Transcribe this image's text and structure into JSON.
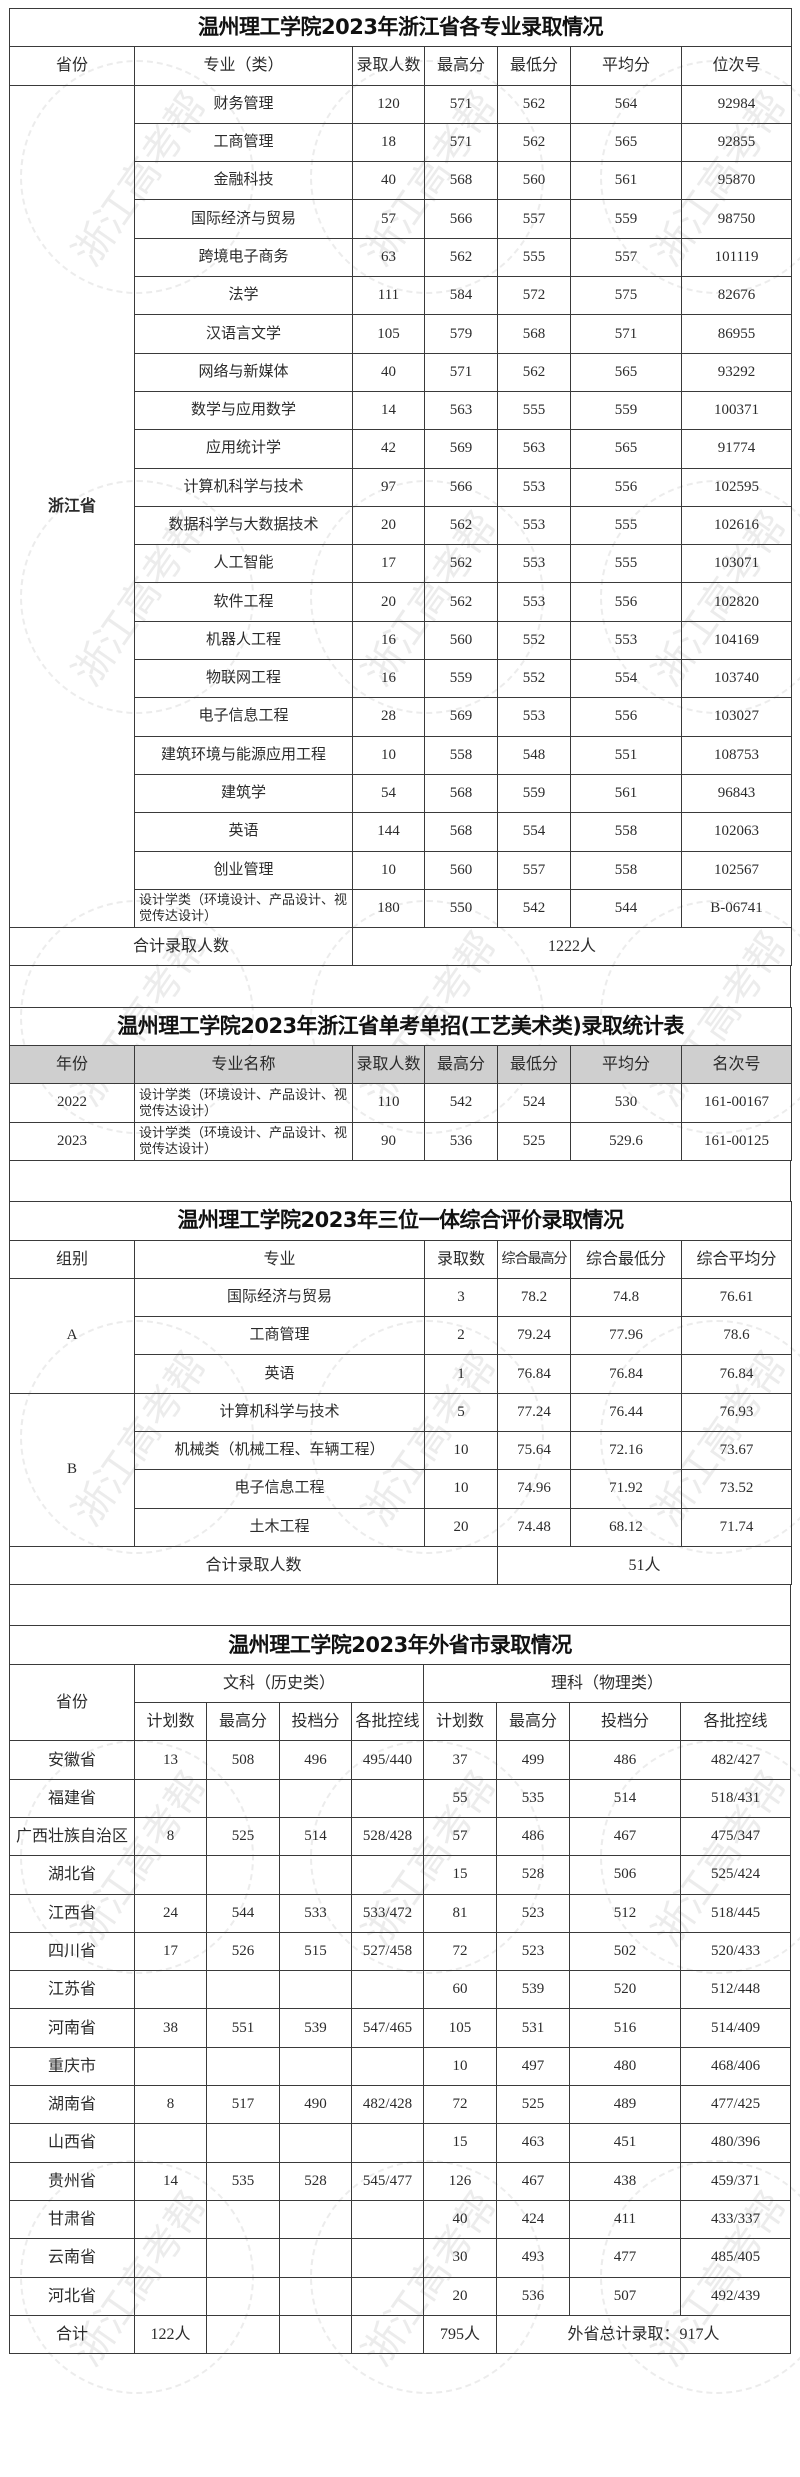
{
  "watermark": "浙江高考帮",
  "table1": {
    "title": "温州理工学院2023年浙江省各专业录取情况",
    "headers": [
      "省份",
      "专业（类）",
      "录取人数",
      "最高分",
      "最低分",
      "平均分",
      "位次号"
    ],
    "province": "浙江省",
    "rows": [
      [
        "财务管理",
        "120",
        "571",
        "562",
        "564",
        "92984"
      ],
      [
        "工商管理",
        "18",
        "571",
        "562",
        "565",
        "92855"
      ],
      [
        "金融科技",
        "40",
        "568",
        "560",
        "561",
        "95870"
      ],
      [
        "国际经济与贸易",
        "57",
        "566",
        "557",
        "559",
        "98750"
      ],
      [
        "跨境电子商务",
        "63",
        "562",
        "555",
        "557",
        "101119"
      ],
      [
        "法学",
        "111",
        "584",
        "572",
        "575",
        "82676"
      ],
      [
        "汉语言文学",
        "105",
        "579",
        "568",
        "571",
        "86955"
      ],
      [
        "网络与新媒体",
        "40",
        "571",
        "562",
        "565",
        "93292"
      ],
      [
        "数学与应用数学",
        "14",
        "563",
        "555",
        "559",
        "100371"
      ],
      [
        "应用统计学",
        "42",
        "569",
        "563",
        "565",
        "91774"
      ],
      [
        "计算机科学与技术",
        "97",
        "566",
        "553",
        "556",
        "102595"
      ],
      [
        "数据科学与大数据技术",
        "20",
        "562",
        "553",
        "555",
        "102616"
      ],
      [
        "人工智能",
        "17",
        "562",
        "553",
        "555",
        "103071"
      ],
      [
        "软件工程",
        "20",
        "562",
        "553",
        "556",
        "102820"
      ],
      [
        "机器人工程",
        "16",
        "560",
        "552",
        "553",
        "104169"
      ],
      [
        "物联网工程",
        "16",
        "559",
        "552",
        "554",
        "103740"
      ],
      [
        "电子信息工程",
        "28",
        "569",
        "553",
        "556",
        "103027"
      ],
      [
        "建筑环境与能源应用工程",
        "10",
        "558",
        "548",
        "551",
        "108753"
      ],
      [
        "建筑学",
        "54",
        "568",
        "559",
        "561",
        "96843"
      ],
      [
        "英语",
        "144",
        "568",
        "554",
        "558",
        "102063"
      ],
      [
        "创业管理",
        "10",
        "560",
        "557",
        "558",
        "102567"
      ],
      [
        "设计学类（环境设计、产品设计、视觉传达设计）",
        "180",
        "550",
        "542",
        "544",
        "B-06741"
      ]
    ],
    "total_label": "合计录取人数",
    "total_value": "1222人"
  },
  "table2": {
    "title": "温州理工学院2023年浙江省单考单招(工艺美术类)录取统计表",
    "headers": [
      "年份",
      "专业名称",
      "录取人数",
      "最高分",
      "最低分",
      "平均分",
      "名次号"
    ],
    "rows": [
      [
        "2022",
        "设计学类（环境设计、产品设计、视觉传达设计）",
        "110",
        "542",
        "524",
        "530",
        "161-00167"
      ],
      [
        "2023",
        "设计学类（环境设计、产品设计、视觉传达设计）",
        "90",
        "536",
        "525",
        "529.6",
        "161-00125"
      ]
    ]
  },
  "table3": {
    "title": "温州理工学院2023年三位一体综合评价录取情况",
    "headers": [
      "组别",
      "专业",
      "录取数",
      "综合最高分",
      "综合最低分",
      "综合平均分"
    ],
    "groups": [
      {
        "name": "A",
        "rows": [
          [
            "国际经济与贸易",
            "3",
            "78.2",
            "74.8",
            "76.61"
          ],
          [
            "工商管理",
            "2",
            "79.24",
            "77.96",
            "78.6"
          ],
          [
            "英语",
            "1",
            "76.84",
            "76.84",
            "76.84"
          ]
        ]
      },
      {
        "name": "B",
        "rows": [
          [
            "计算机科学与技术",
            "5",
            "77.24",
            "76.44",
            "76.93"
          ],
          [
            "机械类（机械工程、车辆工程）",
            "10",
            "75.64",
            "72.16",
            "73.67"
          ],
          [
            "电子信息工程",
            "10",
            "74.96",
            "71.92",
            "73.52"
          ],
          [
            "土木工程",
            "20",
            "74.48",
            "68.12",
            "71.74"
          ]
        ]
      }
    ],
    "total_label": "合计录取人数",
    "total_value": "51人"
  },
  "table4": {
    "title": "温州理工学院2023年外省市录取情况",
    "province_header": "省份",
    "arts_header": "文科（历史类）",
    "science_header": "理科（物理类）",
    "sub_headers": [
      "计划数",
      "最高分",
      "投档分",
      "各批控线",
      "计划数",
      "最高分",
      "投档分",
      "各批控线"
    ],
    "rows": [
      [
        "安徽省",
        "13",
        "508",
        "496",
        "495/440",
        "37",
        "499",
        "486",
        "482/427"
      ],
      [
        "福建省",
        "",
        "",
        "",
        "",
        "55",
        "535",
        "514",
        "518/431"
      ],
      [
        "广西壮族自治区",
        "8",
        "525",
        "514",
        "528/428",
        "57",
        "486",
        "467",
        "475/347"
      ],
      [
        "湖北省",
        "",
        "",
        "",
        "",
        "15",
        "528",
        "506",
        "525/424"
      ],
      [
        "江西省",
        "24",
        "544",
        "533",
        "533/472",
        "81",
        "523",
        "512",
        "518/445"
      ],
      [
        "四川省",
        "17",
        "526",
        "515",
        "527/458",
        "72",
        "523",
        "502",
        "520/433"
      ],
      [
        "江苏省",
        "",
        "",
        "",
        "",
        "60",
        "539",
        "520",
        "512/448"
      ],
      [
        "河南省",
        "38",
        "551",
        "539",
        "547/465",
        "105",
        "531",
        "516",
        "514/409"
      ],
      [
        "重庆市",
        "",
        "",
        "",
        "",
        "10",
        "497",
        "480",
        "468/406"
      ],
      [
        "湖南省",
        "8",
        "517",
        "490",
        "482/428",
        "72",
        "525",
        "489",
        "477/425"
      ],
      [
        "山西省",
        "",
        "",
        "",
        "",
        "15",
        "463",
        "451",
        "480/396"
      ],
      [
        "贵州省",
        "14",
        "535",
        "528",
        "545/477",
        "126",
        "467",
        "438",
        "459/371"
      ],
      [
        "甘肃省",
        "",
        "",
        "",
        "",
        "40",
        "424",
        "411",
        "433/337"
      ],
      [
        "云南省",
        "",
        "",
        "",
        "",
        "30",
        "493",
        "477",
        "485/405"
      ],
      [
        "河北省",
        "",
        "",
        "",
        "",
        "20",
        "536",
        "507",
        "492/439"
      ]
    ],
    "total": {
      "label": "合计",
      "arts_plan": "122人",
      "science_plan": "795人",
      "overall": "外省总计录取：917人"
    }
  }
}
